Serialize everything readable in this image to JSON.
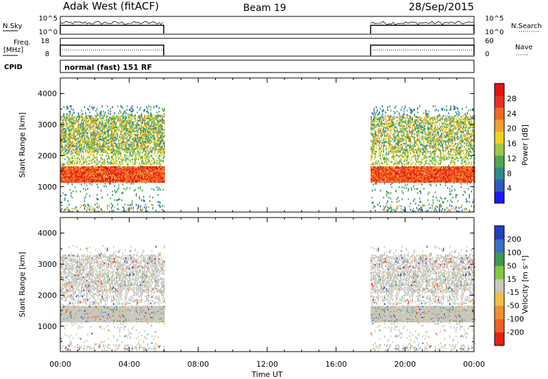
{
  "header": {
    "station": "Adak West (fitACF)",
    "beam": "Beam 19",
    "date": "28/Sep/2015"
  },
  "panels": {
    "nsky": {
      "left_label": "N.Sky",
      "right_label": "N.Search",
      "left_ticks": [
        "10^5",
        "10^0"
      ],
      "right_ticks": [
        "10^5",
        "10^0"
      ]
    },
    "freq": {
      "left_label_1": "Freq.",
      "left_label_2": "[MHz]",
      "right_label": "Nave",
      "left_ticks": [
        "18",
        "8"
      ],
      "right_ticks": [
        "60",
        "0"
      ]
    },
    "cpid": {
      "label": "CPID",
      "text": "normal (fast) 151 RF"
    }
  },
  "axes": {
    "x_label": "Time UT",
    "x_ticks": [
      "00:00",
      "04:00",
      "08:00",
      "12:00",
      "16:00",
      "20:00",
      "00:00"
    ],
    "y_label": "Slant Range [km]",
    "y_ticks": [
      "1000",
      "2000",
      "3000",
      "4000"
    ]
  },
  "colorbars": {
    "power": {
      "label": "Power [dB]",
      "ticks": [
        "4",
        "8",
        "12",
        "16",
        "20",
        "24",
        "28"
      ],
      "colors": [
        "#1a1aff",
        "#2a5cc0",
        "#2e8a8a",
        "#4ea84e",
        "#a0c840",
        "#f0d020",
        "#f0a030",
        "#f06a20",
        "#e83020",
        "#e81010"
      ]
    },
    "velocity": {
      "label": "Velocity [m s⁻¹]",
      "ticks": [
        "200",
        "100",
        "50",
        "15",
        "-15",
        "-50",
        "-100",
        "-200"
      ],
      "colors": [
        "#2040c0",
        "#3a70c8",
        "#3a9a50",
        "#80c840",
        "#c8c8c0",
        "#f0c040",
        "#f09030",
        "#f06020",
        "#e82010"
      ]
    }
  },
  "chart_data": [
    {
      "type": "heatmap",
      "title": "Power",
      "xlabel": "Time UT",
      "ylabel": "Slant Range [km]",
      "x_range_hours": [
        0,
        24
      ],
      "ylim": [
        180,
        4500
      ],
      "data_intervals_hours": [
        [
          0,
          6
        ],
        [
          18,
          24
        ]
      ],
      "bands": [
        {
          "t": [
            0,
            6
          ],
          "range_km": [
            1150,
            1650
          ],
          "level": "high"
        },
        {
          "t": [
            0,
            6
          ],
          "range_km": [
            2100,
            3300
          ],
          "level": "medium"
        },
        {
          "t": [
            18,
            24
          ],
          "range_km": [
            1150,
            1600
          ],
          "level": "high"
        },
        {
          "t": [
            18,
            24
          ],
          "range_km": [
            1700,
            3000
          ],
          "level": "medium"
        }
      ]
    },
    {
      "type": "heatmap",
      "title": "Velocity",
      "xlabel": "Time UT",
      "ylabel": "Slant Range [km]",
      "x_range_hours": [
        0,
        24
      ],
      "ylim": [
        180,
        4500
      ],
      "data_intervals_hours": [
        [
          0,
          6
        ],
        [
          18,
          24
        ]
      ],
      "dominant_value_range": "-15 to 15"
    }
  ]
}
